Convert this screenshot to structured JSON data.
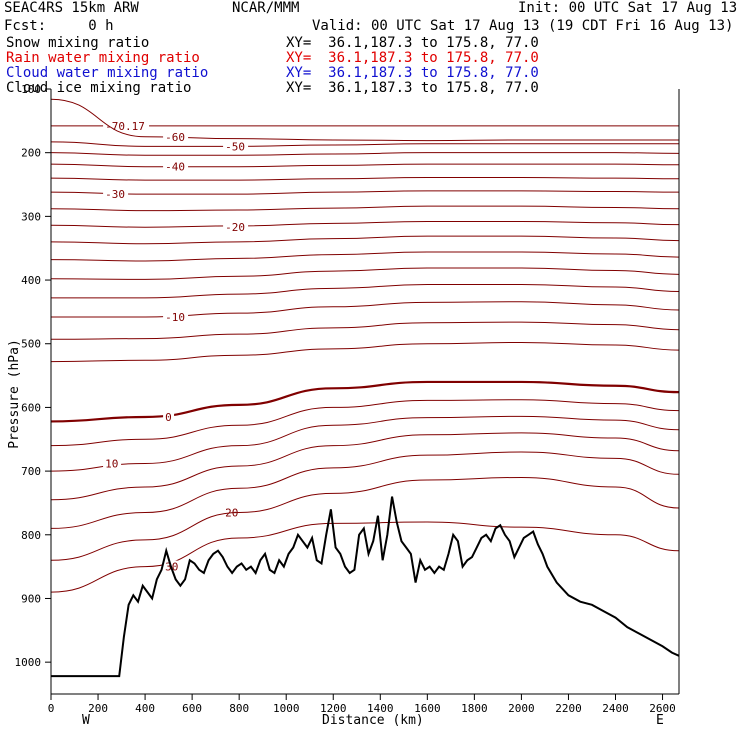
{
  "header": {
    "model": "SEAC4RS 15km ARW",
    "org": "NCAR/MMM",
    "init": "Init: 00 UTC Sat 17 Aug 13",
    "fcst": "Fcst:     0 h",
    "valid": "Valid: 00 UTC Sat 17 Aug 13 (19 CDT Fri 16 Aug 13)",
    "fields": [
      {
        "label": "Snow mixing ratio",
        "xy": "XY=  36.1,187.3 to 175.8, 77.0",
        "color": "#000000"
      },
      {
        "label": "Rain water mixing ratio",
        "xy": "XY=  36.1,187.3 to 175.8, 77.0",
        "color": "#e00000"
      },
      {
        "label": "Cloud water mixing ratio",
        "xy": "XY=  36.1,187.3 to 175.8, 77.0",
        "color": "#1010d0"
      },
      {
        "label": "Cloud ice mixing ratio",
        "xy": "XY=  36.1,187.3 to 175.8, 77.0",
        "color": "#000000"
      }
    ]
  },
  "chart_data": {
    "type": "line",
    "xlabel": "Distance (km)",
    "ylabel": "Pressure (hPa)",
    "xlim": [
      0,
      2670
    ],
    "ylim": [
      1050,
      100
    ],
    "xticks": [
      0,
      200,
      400,
      600,
      800,
      1000,
      1200,
      1400,
      1600,
      1800,
      2000,
      2200,
      2400,
      2600
    ],
    "yticks": [
      200,
      300,
      400,
      500,
      600,
      700,
      800,
      900,
      1000
    ],
    "yticks_partial": [
      {
        "value": 100,
        "label": "100"
      }
    ],
    "x_end_labels": {
      "left": "W",
      "right": "E"
    },
    "contour_color": "#800000",
    "terrain_color": "#000000",
    "terrain": {
      "x": [
        0,
        290,
        310,
        330,
        350,
        370,
        390,
        410,
        430,
        450,
        470,
        490,
        510,
        530,
        550,
        570,
        590,
        610,
        630,
        650,
        670,
        690,
        710,
        730,
        750,
        770,
        790,
        810,
        830,
        850,
        870,
        890,
        910,
        930,
        950,
        970,
        990,
        1010,
        1030,
        1050,
        1070,
        1090,
        1110,
        1130,
        1150,
        1170,
        1190,
        1210,
        1230,
        1250,
        1270,
        1290,
        1310,
        1330,
        1350,
        1370,
        1390,
        1410,
        1430,
        1450,
        1470,
        1490,
        1510,
        1530,
        1550,
        1570,
        1590,
        1610,
        1630,
        1650,
        1670,
        1690,
        1710,
        1730,
        1750,
        1770,
        1790,
        1810,
        1830,
        1850,
        1870,
        1890,
        1910,
        1930,
        1950,
        1970,
        1990,
        2010,
        2030,
        2050,
        2070,
        2090,
        2110,
        2150,
        2200,
        2250,
        2300,
        2350,
        2400,
        2450,
        2500,
        2550,
        2600,
        2640,
        2670
      ],
      "p": [
        1022,
        1022,
        960,
        910,
        895,
        905,
        880,
        890,
        900,
        870,
        855,
        825,
        850,
        870,
        880,
        870,
        840,
        845,
        855,
        860,
        840,
        830,
        825,
        835,
        850,
        860,
        850,
        845,
        855,
        850,
        860,
        840,
        830,
        855,
        860,
        840,
        850,
        830,
        820,
        800,
        810,
        820,
        805,
        840,
        845,
        800,
        760,
        820,
        830,
        850,
        860,
        855,
        800,
        790,
        830,
        810,
        770,
        840,
        800,
        740,
        780,
        810,
        820,
        830,
        875,
        840,
        855,
        850,
        860,
        850,
        855,
        830,
        800,
        810,
        850,
        840,
        835,
        820,
        805,
        800,
        810,
        790,
        785,
        800,
        810,
        835,
        820,
        805,
        800,
        795,
        815,
        830,
        850,
        875,
        895,
        905,
        910,
        920,
        930,
        945,
        955,
        965,
        975,
        985,
        990,
        1000
      ]
    },
    "contours": [
      {
        "label": "-70.17",
        "y": [
          158,
          158,
          158,
          158,
          158,
          158,
          158,
          158
        ]
      },
      {
        "label": "-60",
        "y": [
          116,
          175,
          178,
          180,
          181,
          180,
          180,
          180
        ]
      },
      {
        "label": "-50",
        "y": [
          183,
          190,
          190,
          188,
          186,
          186,
          186,
          186
        ]
      },
      {
        "label": "",
        "y": [
          200,
          204,
          204,
          202,
          200,
          200,
          200,
          201
        ]
      },
      {
        "label": "-40",
        "y": [
          218,
          222,
          222,
          220,
          218,
          218,
          218,
          219
        ]
      },
      {
        "label": "",
        "y": [
          240,
          243,
          243,
          241,
          239,
          239,
          240,
          241
        ]
      },
      {
        "label": "-30",
        "y": [
          262,
          265,
          265,
          262,
          260,
          260,
          261,
          262
        ]
      },
      {
        "label": "",
        "y": [
          288,
          291,
          290,
          287,
          284,
          284,
          286,
          288
        ]
      },
      {
        "label": "-20",
        "y": [
          314,
          317,
          315,
          311,
          308,
          308,
          310,
          313
        ]
      },
      {
        "label": "",
        "y": [
          340,
          343,
          340,
          335,
          331,
          331,
          334,
          338
        ]
      },
      {
        "label": "",
        "y": [
          368,
          370,
          366,
          360,
          356,
          356,
          359,
          364
        ]
      },
      {
        "label": "",
        "y": [
          398,
          399,
          394,
          386,
          381,
          381,
          385,
          391
        ]
      },
      {
        "label": "",
        "y": [
          428,
          428,
          422,
          413,
          407,
          407,
          411,
          418
        ]
      },
      {
        "label": "-10",
        "y": [
          458,
          458,
          452,
          442,
          435,
          434,
          439,
          447
        ]
      },
      {
        "label": "",
        "y": [
          493,
          492,
          485,
          475,
          467,
          466,
          470,
          478
        ]
      },
      {
        "label": "",
        "y": [
          528,
          526,
          518,
          508,
          500,
          498,
          502,
          510
        ]
      },
      {
        "label": "0",
        "y": [
          622,
          615,
          596,
          570,
          560,
          560,
          566,
          576
        ]
      },
      {
        "label": "",
        "y": [
          660,
          650,
          628,
          600,
          589,
          588,
          594,
          605
        ]
      },
      {
        "label": "10",
        "y": [
          700,
          688,
          660,
          628,
          616,
          614,
          620,
          635
        ]
      },
      {
        "label": "",
        "y": [
          745,
          725,
          692,
          660,
          643,
          640,
          648,
          668
        ]
      },
      {
        "label": "20",
        "y": [
          790,
          765,
          727,
          695,
          675,
          670,
          680,
          705
        ]
      },
      {
        "label": "",
        "y": [
          840,
          808,
          765,
          735,
          714,
          710,
          725,
          758
        ]
      },
      {
        "label": "30",
        "y": [
          890,
          850,
          805,
          782,
          780,
          788,
          800,
          825
        ]
      }
    ],
    "contour_x": [
      0,
      400,
      800,
      1200,
      1600,
      2000,
      2400,
      2670
    ]
  }
}
